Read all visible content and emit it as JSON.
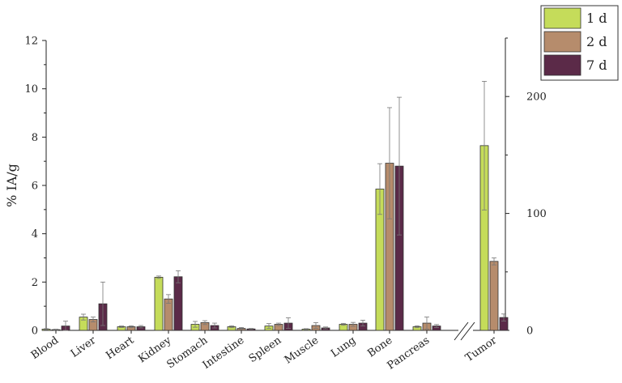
{
  "chart_data": {
    "type": "bar",
    "ylabel": "% IA/g",
    "left_axis": {
      "ylim": [
        0,
        12
      ],
      "ticks": [
        0,
        2,
        4,
        6,
        8,
        10,
        12
      ]
    },
    "right_axis": {
      "ylim": [
        0,
        250
      ],
      "ticks": [
        0,
        100,
        200
      ]
    },
    "categories": [
      "Blood",
      "Liver",
      "Heart",
      "Kidney",
      "Stomach",
      "Intestine",
      "Spleen",
      "Muscle",
      "Lung",
      "Bone",
      "Pancreas",
      "Tumor"
    ],
    "right_axis_categories": [
      "Tumor"
    ],
    "series": [
      {
        "name": "1 d",
        "color": "#c5dc5a",
        "values": [
          0.05,
          0.55,
          0.15,
          2.2,
          0.25,
          0.15,
          0.18,
          0.05,
          0.25,
          5.85,
          0.15,
          158
        ],
        "errors": [
          0.02,
          0.12,
          0.03,
          0.05,
          0.12,
          0.04,
          0.1,
          0.02,
          0.04,
          1.05,
          0.04,
          55
        ]
      },
      {
        "name": "2 d",
        "color": "#b68c6c",
        "values": [
          0.03,
          0.45,
          0.15,
          1.3,
          0.32,
          0.08,
          0.25,
          0.2,
          0.25,
          6.92,
          0.3,
          59
        ],
        "errors": [
          0.02,
          0.1,
          0.04,
          0.18,
          0.08,
          0.04,
          0.05,
          0.12,
          0.08,
          2.3,
          0.25,
          3
        ]
      },
      {
        "name": "7 d",
        "color": "#5b2a48",
        "values": [
          0.18,
          1.1,
          0.15,
          2.22,
          0.2,
          0.06,
          0.3,
          0.1,
          0.3,
          6.8,
          0.18,
          11
        ],
        "errors": [
          0.2,
          0.9,
          0.05,
          0.25,
          0.1,
          0.02,
          0.22,
          0.04,
          0.12,
          2.85,
          0.06,
          3
        ]
      }
    ],
    "legend_position": "top-right"
  }
}
